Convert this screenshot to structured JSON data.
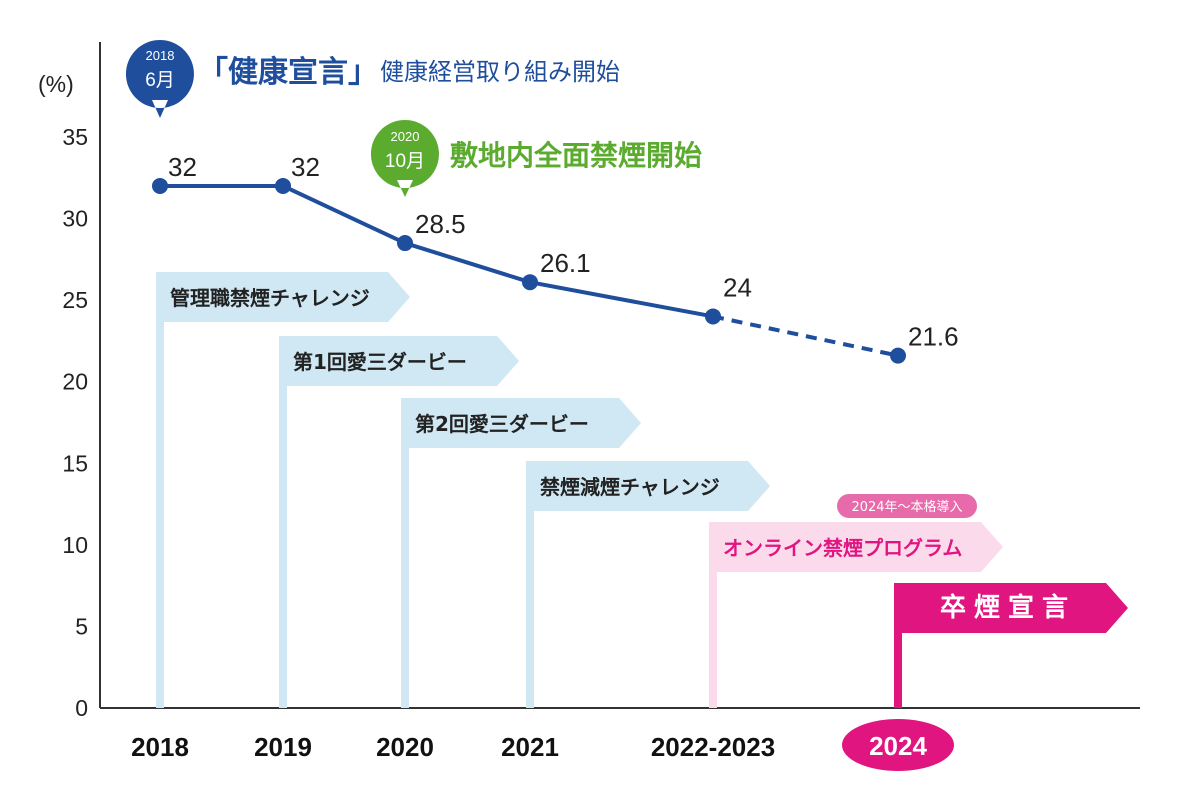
{
  "chart_data": {
    "type": "line",
    "categories": [
      "2018",
      "2019",
      "2020",
      "2021",
      "2022-2023",
      "2024"
    ],
    "values": [
      32,
      32,
      28.5,
      26.1,
      24,
      21.6
    ],
    "value_labels": [
      "32",
      "32",
      "28.5",
      "26.1",
      "24",
      "21.6"
    ],
    "projected_last_segment": true,
    "ylabel": "(%)",
    "ylim": [
      0,
      35
    ],
    "yticks": [
      "0",
      "5",
      "10",
      "15",
      "20",
      "25",
      "30",
      "35"
    ],
    "highlight_category": "2024",
    "line_color": "#1f4e9c",
    "grid": false
  },
  "annotations": {
    "health_declaration": {
      "badge_year": "2018",
      "badge_month": "6月",
      "title": "「健康宣言」",
      "subtitle": "健康経営取り組み開始",
      "color": "#1f4e9c"
    },
    "smoking_ban": {
      "badge_year": "2020",
      "badge_month": "10月",
      "title": "敷地内全面禁煙開始",
      "color": "#5aab2e"
    }
  },
  "programs": [
    {
      "label": "管理職禁煙チャレンジ",
      "start": "2018",
      "color": "#cfe8f3",
      "text_color": "#222222"
    },
    {
      "label": "第1回愛三ダービー",
      "start": "2019",
      "color": "#cfe8f3",
      "text_color": "#222222"
    },
    {
      "label": "第2回愛三ダービー",
      "start": "2020",
      "color": "#cfe8f3",
      "text_color": "#222222"
    },
    {
      "label": "禁煙減煙チャレンジ",
      "start": "2021",
      "color": "#cfe8f3",
      "text_color": "#222222"
    },
    {
      "label": "オンライン禁煙プログラム",
      "start": "2022-2023",
      "color": "#fbdbeb",
      "text_color": "#e0157f",
      "note": "2024年〜本格導入"
    },
    {
      "label": "卒煙宣言",
      "start": "2024",
      "color": "#e0157f",
      "text_color": "#ffffff"
    }
  ],
  "colors": {
    "navy": "#1f4e9c",
    "green": "#5aab2e",
    "pink": "#e0157f",
    "light_blue": "#cfe8f3",
    "light_pink": "#fbdbeb"
  }
}
